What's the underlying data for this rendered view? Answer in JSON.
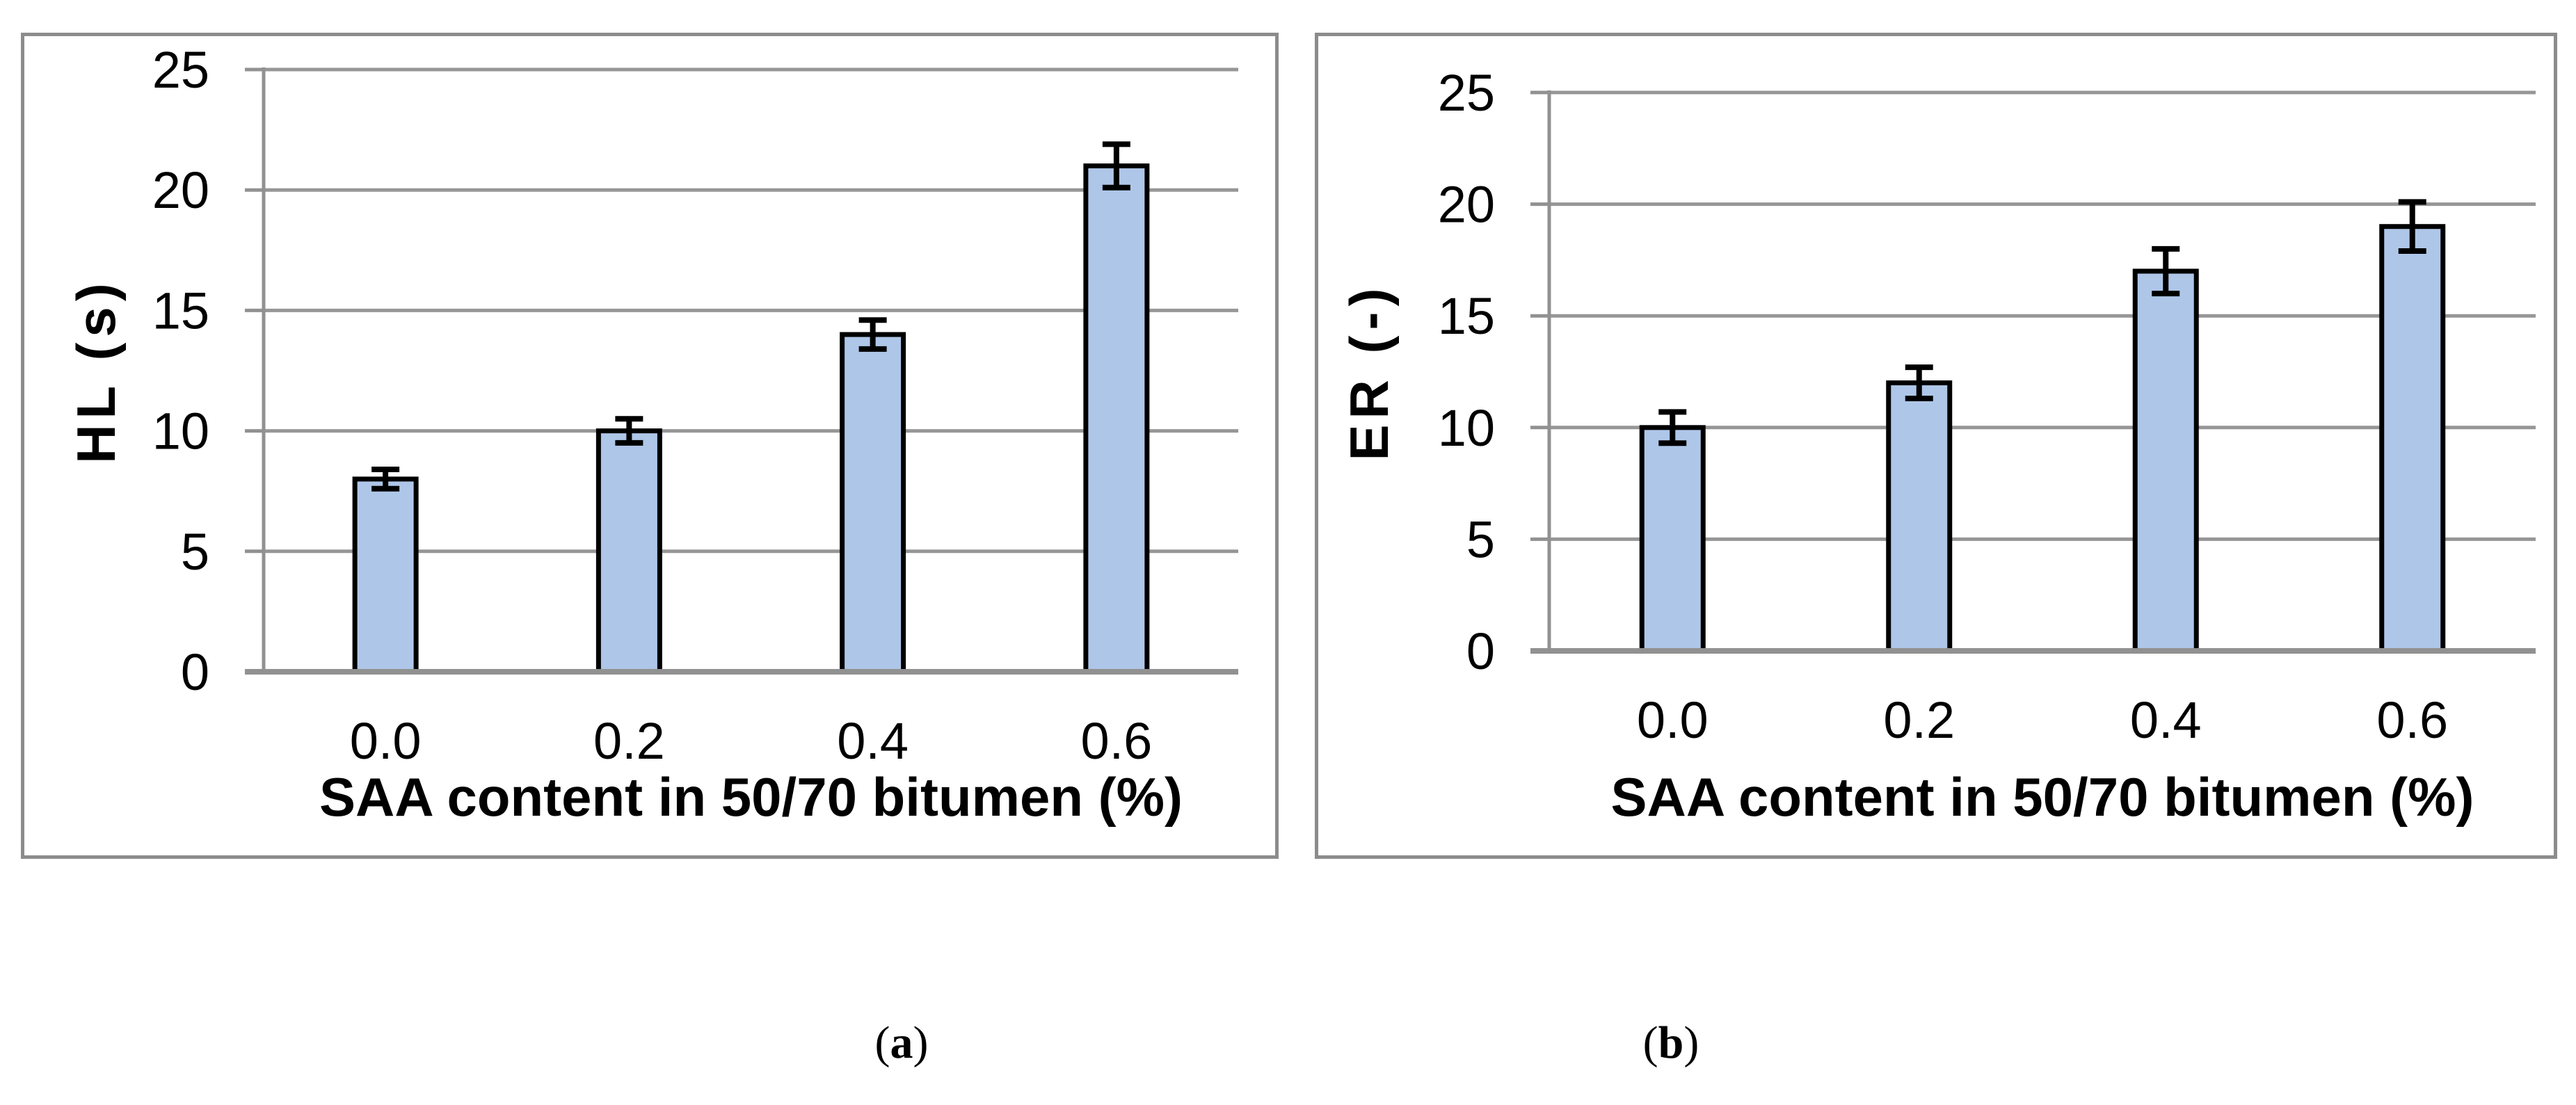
{
  "figure": {
    "background": "#ffffff",
    "captions": [
      {
        "open": "(",
        "letter": "a",
        "close": ")"
      },
      {
        "open": "(",
        "letter": "b",
        "close": ")"
      }
    ]
  },
  "style": {
    "bar_fill": "#aec6e8",
    "bar_border": "#000000",
    "error_color": "#000000",
    "gridline_color": "#969696",
    "axis_line_color": "#919191",
    "panel_border_color": "#8c8c8c",
    "text_color": "#000000"
  },
  "chart_data": [
    {
      "id": "a",
      "type": "bar",
      "title": "",
      "categories": [
        "0.0",
        "0.2",
        "0.4",
        "0.6"
      ],
      "values": [
        8,
        10,
        14,
        21
      ],
      "error_bars": [
        0.4,
        0.5,
        0.6,
        0.9
      ],
      "xlabel": "SAA content in 50/70 bitumen (%)",
      "ylabel": "HL (s)",
      "yticks": [
        "0",
        "5",
        "10",
        "15",
        "20",
        "25"
      ],
      "ytick_values": [
        0,
        5,
        10,
        15,
        20,
        25
      ],
      "ylim": [
        0,
        25
      ],
      "grid": true,
      "legend": null
    },
    {
      "id": "b",
      "type": "bar",
      "title": "",
      "categories": [
        "0.0",
        "0.2",
        "0.4",
        "0.6"
      ],
      "values": [
        10,
        12,
        17,
        19
      ],
      "error_bars": [
        0.7,
        0.7,
        1.0,
        1.1
      ],
      "xlabel": "SAA content in 50/70 bitumen (%)",
      "ylabel": "ER (-)",
      "yticks": [
        "0",
        "5",
        "10",
        "15",
        "20",
        "25"
      ],
      "ytick_values": [
        0,
        5,
        10,
        15,
        20,
        25
      ],
      "ylim": [
        0,
        25
      ],
      "grid": true,
      "legend": null
    }
  ]
}
